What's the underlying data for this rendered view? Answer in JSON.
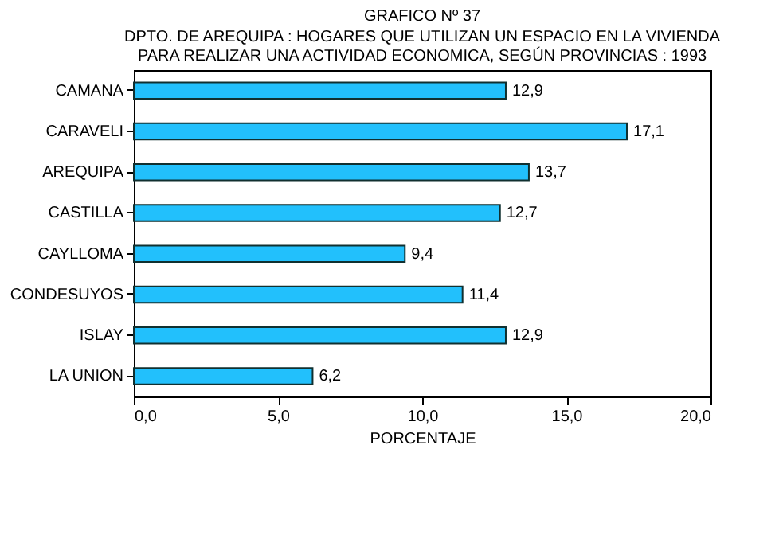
{
  "chart_data": {
    "type": "bar",
    "orientation": "horizontal",
    "title": "GRAFICO Nº 37",
    "subtitle": "DPTO. DE AREQUIPA : HOGARES QUE UTILIZAN UN ESPACIO EN LA VIVIENDA\nPARA REALIZAR UNA ACTIVIDAD ECONOMICA, SEGÚN PROVINCIAS : 1993",
    "xlabel": "PORCENTAJE",
    "categories": [
      "CAMANA",
      "CARAVELI",
      "AREQUIPA",
      "CASTILLA",
      "CAYLLOMA",
      "CONDESUYOS",
      "ISLAY",
      "LA UNION"
    ],
    "values": [
      12.9,
      17.1,
      13.7,
      12.7,
      9.4,
      11.4,
      12.9,
      6.2
    ],
    "value_labels": [
      "12,9",
      "17,1",
      "13,7",
      "12,7",
      "9,4",
      "11,4",
      "12,9",
      "6,2"
    ],
    "color": "#22c0fc",
    "xlim": [
      0,
      20
    ],
    "xticks": [
      {
        "value": 0,
        "label": "0,0"
      },
      {
        "value": 5,
        "label": "5,0"
      },
      {
        "value": 10,
        "label": "10,0"
      },
      {
        "value": 15,
        "label": "15,0"
      },
      {
        "value": 20,
        "label": "20,0"
      }
    ],
    "grid": false
  }
}
